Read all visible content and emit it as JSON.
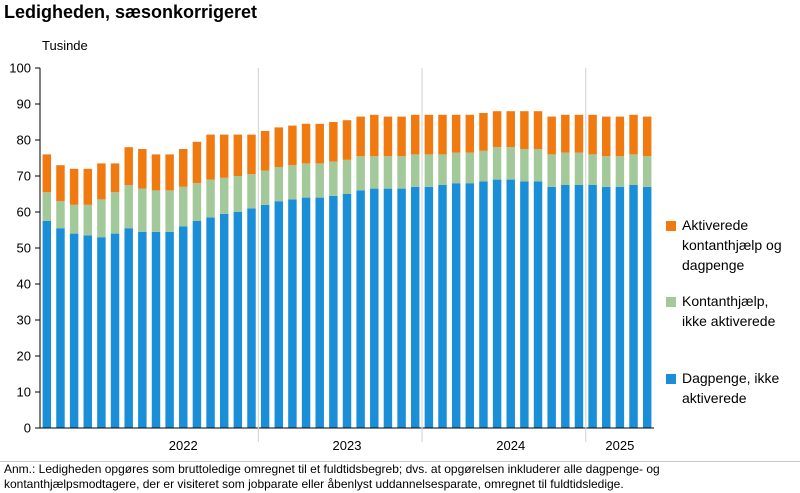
{
  "chart_data": {
    "type": "bar",
    "stacked": true,
    "title": "Ledigheden, sæsonkorrigeret",
    "ylabel": "Tusinde",
    "xlabel": "",
    "ylim": [
      0,
      100
    ],
    "yticks": [
      0,
      10,
      20,
      30,
      40,
      50,
      60,
      70,
      80,
      90,
      100
    ],
    "grid": false,
    "legend_position": "right",
    "year_labels": [
      "2022",
      "2023",
      "2024",
      "2025"
    ],
    "year_label_months": [
      "2022-07",
      "2023-07",
      "2024-07",
      "2025-03"
    ],
    "year_boundaries": [
      "2022-12",
      "2023-12",
      "2024-12"
    ],
    "categories": [
      "2021-09",
      "2021-10",
      "2021-11",
      "2021-12",
      "2022-01",
      "2022-02",
      "2022-03",
      "2022-04",
      "2022-05",
      "2022-06",
      "2022-07",
      "2022-08",
      "2022-09",
      "2022-10",
      "2022-11",
      "2022-12",
      "2023-01",
      "2023-02",
      "2023-03",
      "2023-04",
      "2023-05",
      "2023-06",
      "2023-07",
      "2023-08",
      "2023-09",
      "2023-10",
      "2023-11",
      "2023-12",
      "2024-01",
      "2024-02",
      "2024-03",
      "2024-04",
      "2024-05",
      "2024-06",
      "2024-07",
      "2024-08",
      "2024-09",
      "2024-10",
      "2024-11",
      "2024-12",
      "2025-01",
      "2025-02",
      "2025-03",
      "2025-04",
      "2025-05"
    ],
    "series": [
      {
        "name": "Dagpenge, ikke aktiverede",
        "color": "#1a8fd8",
        "values": [
          57.5,
          55.5,
          54.0,
          53.5,
          53.0,
          54.0,
          55.5,
          54.5,
          54.5,
          54.5,
          56.0,
          57.5,
          58.5,
          59.5,
          60.0,
          61.0,
          62.0,
          63.0,
          63.5,
          64.0,
          64.0,
          64.5,
          65.0,
          66.0,
          66.5,
          66.5,
          66.5,
          67.0,
          67.0,
          67.5,
          68.0,
          68.0,
          68.5,
          69.0,
          69.0,
          68.5,
          68.5,
          67.0,
          67.5,
          67.5,
          67.5,
          67.0,
          67.0,
          67.5,
          67.0
        ]
      },
      {
        "name": "Kontanthjælp, ikke aktiverede",
        "color": "#a3c99a",
        "values": [
          8.0,
          7.5,
          8.0,
          8.5,
          10.5,
          11.5,
          12.0,
          12.0,
          11.5,
          11.5,
          11.0,
          10.5,
          10.5,
          10.0,
          10.0,
          9.5,
          9.5,
          9.5,
          9.5,
          9.5,
          9.5,
          9.5,
          9.5,
          9.5,
          9.0,
          9.0,
          9.0,
          9.0,
          9.0,
          8.5,
          8.5,
          8.5,
          8.5,
          9.0,
          9.0,
          9.0,
          9.0,
          9.0,
          9.0,
          9.0,
          8.5,
          8.5,
          8.5,
          8.5,
          8.5
        ]
      },
      {
        "name": "Aktiverede kontanthjælp og dagpenge",
        "color": "#f07a10",
        "values": [
          10.5,
          10.0,
          10.0,
          10.0,
          10.0,
          8.0,
          10.5,
          11.0,
          10.0,
          10.0,
          10.5,
          11.5,
          12.5,
          12.0,
          11.5,
          11.0,
          11.0,
          11.0,
          11.0,
          11.0,
          11.0,
          11.0,
          11.0,
          11.0,
          11.5,
          11.0,
          11.0,
          11.0,
          11.0,
          11.0,
          10.5,
          10.5,
          10.5,
          10.0,
          10.0,
          10.5,
          10.5,
          10.5,
          10.5,
          10.5,
          11.0,
          11.0,
          11.0,
          11.0,
          11.0
        ]
      }
    ],
    "note": "Anm.: Ledigheden opgøres som bruttoledige omregnet til et fuldtidsbegreb; dvs. at opgørelsen inkluderer alle dagpenge- og kontanthjælpsmodtagere, der er visiteret som jobparate eller åbenlyst uddannelsesparate, omregnet til fuldtidsledige."
  }
}
